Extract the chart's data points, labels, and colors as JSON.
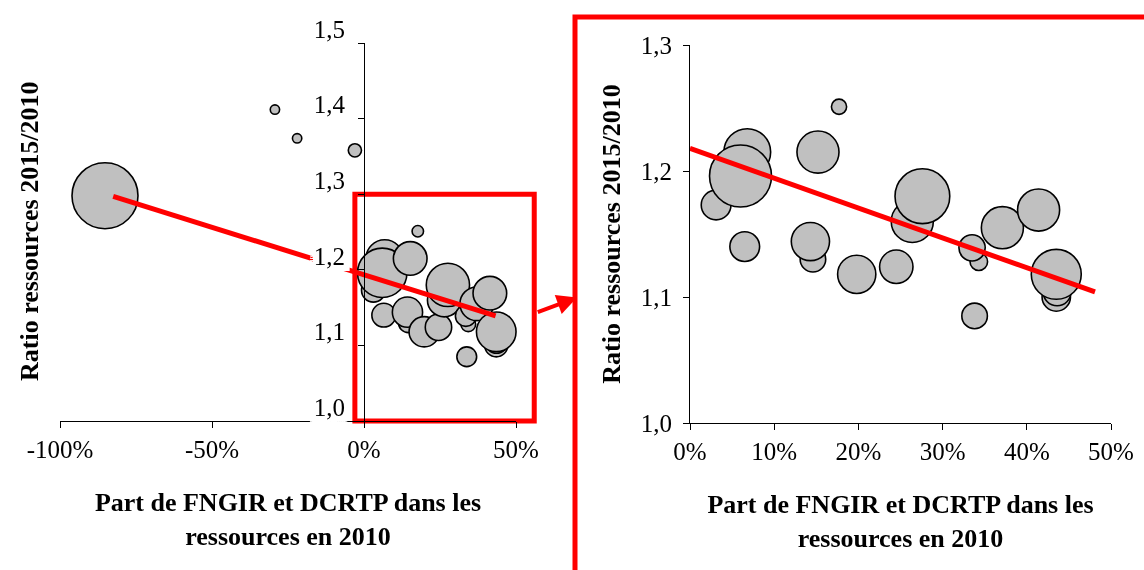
{
  "chart_data": [
    {
      "type": "bubble",
      "xlabel": "Part de FNGIR et DCRTP dans les\nressources en 2010",
      "ylabel": "Ratio ressources 2015/2010",
      "xlim": [
        -100,
        50
      ],
      "ylim": [
        1.0,
        1.5
      ],
      "xticks": [
        {
          "value": -100,
          "label": "-100%"
        },
        {
          "value": -50,
          "label": "-50%"
        },
        {
          "value": 0,
          "label": "0%"
        },
        {
          "value": 50,
          "label": "50%"
        }
      ],
      "yticks": [
        {
          "value": 1.0,
          "label": "1,0"
        },
        {
          "value": 1.1,
          "label": "1,1"
        },
        {
          "value": 1.2,
          "label": "1,2"
        },
        {
          "value": 1.3,
          "label": "1,3"
        },
        {
          "value": 1.4,
          "label": "1,4"
        },
        {
          "value": 1.5,
          "label": "1,5"
        }
      ],
      "grid": false,
      "series": [
        {
          "color": "#c0c0c0",
          "x": [
            -85.2,
            -29.3,
            -22.0,
            -3.0,
            17.7,
            3.1,
            6.5,
            14.6,
            14.3,
            6.8,
            6.0,
            15.2,
            19.8,
            24.5,
            26.4,
            27.6,
            34.3,
            33.5,
            33.8,
            37.1,
            41.4,
            43.5,
            43.6,
            43.5
          ],
          "values": [
            1.298,
            1.412,
            1.374,
            1.358,
            1.251,
            1.173,
            1.14,
            1.13,
            1.144,
            1.215,
            1.196,
            1.215,
            1.118,
            1.124,
            1.16,
            1.18,
            1.128,
            1.139,
            1.085,
            1.155,
            1.169,
            1.1,
            1.104,
            1.118
          ],
          "sizes": [
            1,
            0.02,
            0.02,
            0.04,
            0.03,
            0.13,
            0.13,
            0.09,
            0.21,
            0.32,
            0.56,
            0.26,
            0.21,
            0.16,
            0.26,
            0.43,
            0.05,
            0.1,
            0.09,
            0.26,
            0.26,
            0.12,
            0.11,
            0.36
          ]
        },
        {
          "type": "line",
          "color": "#ff0000",
          "x": [
            -82.5,
            43.3
          ],
          "values": [
            1.297,
            1.139
          ]
        }
      ]
    },
    {
      "type": "bubble",
      "xlabel": "Part de FNGIR et DCRTP dans les\nressources en 2010",
      "ylabel": "Ratio ressources 2015/2010",
      "xlim": [
        0,
        50
      ],
      "ylim": [
        1.0,
        1.3
      ],
      "xticks": [
        {
          "value": 0,
          "label": "0%"
        },
        {
          "value": 10,
          "label": "10%"
        },
        {
          "value": 20,
          "label": "20%"
        },
        {
          "value": 30,
          "label": "30%"
        },
        {
          "value": 40,
          "label": "40%"
        },
        {
          "value": 50,
          "label": "50%"
        }
      ],
      "yticks": [
        {
          "value": 1.0,
          "label": "1,0"
        },
        {
          "value": 1.1,
          "label": "1,1"
        },
        {
          "value": 1.2,
          "label": "1,2"
        },
        {
          "value": 1.3,
          "label": "1,3"
        }
      ],
      "grid": false,
      "series": [
        {
          "color": "#c0c0c0",
          "x": [
            17.7,
            3.1,
            6.5,
            14.6,
            14.3,
            6.8,
            6.0,
            15.2,
            19.8,
            24.5,
            26.4,
            27.6,
            34.3,
            33.5,
            33.8,
            37.1,
            41.4,
            43.5,
            43.6,
            43.5
          ],
          "values": [
            1.251,
            1.173,
            1.14,
            1.13,
            1.144,
            1.215,
            1.196,
            1.215,
            1.118,
            1.124,
            1.16,
            1.18,
            1.128,
            1.139,
            1.085,
            1.155,
            1.169,
            1.1,
            1.104,
            1.118
          ],
          "sizes": [
            0.06,
            0.23,
            0.23,
            0.17,
            0.38,
            0.57,
            1,
            0.46,
            0.38,
            0.29,
            0.46,
            0.78,
            0.08,
            0.18,
            0.17,
            0.46,
            0.46,
            0.21,
            0.2,
            0.65
          ]
        },
        {
          "type": "line",
          "color": "#ff0000",
          "x": [
            0,
            48.1
          ],
          "values": [
            1.218,
            1.104
          ]
        }
      ]
    }
  ]
}
